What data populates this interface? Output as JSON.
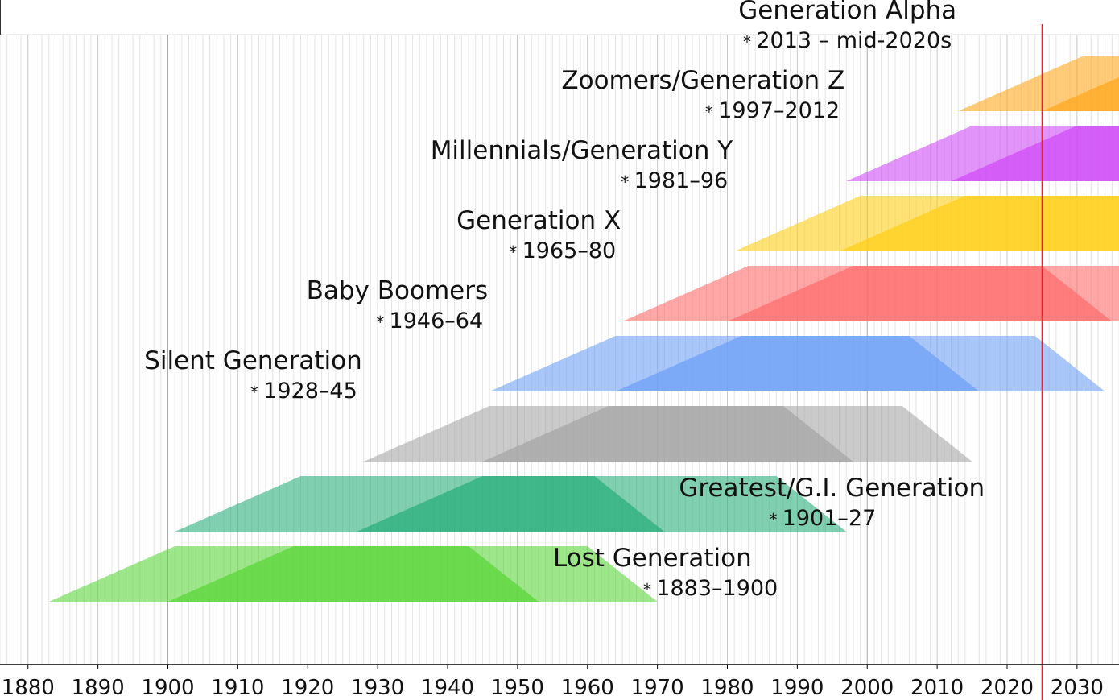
{
  "chart_data": {
    "type": "area",
    "title": "",
    "xlabel": "",
    "ylabel": "",
    "xlim": [
      1876,
      2036
    ],
    "current_year": 2025,
    "x_ticks": [
      1880,
      1890,
      1900,
      1910,
      1920,
      1930,
      1940,
      1950,
      1960,
      1970,
      1980,
      1990,
      2000,
      2010,
      2020,
      2030
    ],
    "x_tick_labels": [
      "1880",
      "1890",
      "1900",
      "1910",
      "1920",
      "1930",
      "1940",
      "1950",
      "1960",
      "1970",
      "1980",
      "1990",
      "2000",
      "2010",
      "2020",
      "2030"
    ],
    "grid": true,
    "series": [
      {
        "name": "Lost Generation",
        "years_label": "1883–1900",
        "birth_start": 1883,
        "birth_end": 1900,
        "adult_start": 1901,
        "adult_end": 1918,
        "elder_start": 1943,
        "elder_end": 1960,
        "death_start": 1953,
        "death_end": 1970,
        "color": "#5bd63a",
        "label_year": 1883,
        "label_side": "right"
      },
      {
        "name": "Greatest/G.I. Generation",
        "years_label": "1901–27",
        "birth_start": 1901,
        "birth_end": 1927,
        "adult_start": 1919,
        "adult_end": 1945,
        "elder_start": 1961,
        "elder_end": 1987,
        "death_start": 1971,
        "death_end": 1997,
        "color": "#2baf7b",
        "label_year": 1901,
        "label_side": "right"
      },
      {
        "name": "Silent Generation",
        "years_label": "1928–45",
        "birth_start": 1928,
        "birth_end": 1945,
        "adult_start": 1946,
        "adult_end": 1963,
        "elder_start": 1988,
        "elder_end": 2005,
        "death_start": 1998,
        "death_end": 2015,
        "color": "#a6a6a6",
        "label_year": 1928,
        "label_side": "left"
      },
      {
        "name": "Baby Boomers",
        "years_label": "1946–64",
        "birth_start": 1946,
        "birth_end": 1964,
        "adult_start": 1964,
        "adult_end": 1982,
        "elder_start": 2006,
        "elder_end": 2024,
        "death_start": 2016,
        "death_end": 2034,
        "color": "#6fa0f5",
        "label_year": 1946,
        "label_side": "left"
      },
      {
        "name": "Generation X",
        "years_label": "1965–80",
        "birth_start": 1965,
        "birth_end": 1980,
        "adult_start": 1983,
        "adult_end": 1998,
        "elder_start": 2025,
        "elder_end": 2040,
        "death_start": 2035,
        "death_end": 2050,
        "color": "#ff6d6d",
        "label_year": 1965,
        "label_side": "left"
      },
      {
        "name": "Millennials/Generation Y",
        "years_label": "1981–96",
        "birth_start": 1981,
        "birth_end": 1996,
        "adult_start": 1999,
        "adult_end": 2014,
        "elder_start": 2041,
        "elder_end": 2056,
        "death_start": 2051,
        "death_end": 2066,
        "color": "#ffcf1a",
        "label_year": 1981,
        "label_side": "left"
      },
      {
        "name": "Zoomers/Generation Z",
        "years_label": "1997–2012",
        "birth_start": 1997,
        "birth_end": 2012,
        "adult_start": 2015,
        "adult_end": 2030,
        "elder_start": 2057,
        "elder_end": 2072,
        "death_start": 2067,
        "death_end": 2082,
        "color": "#cf4cf6",
        "label_year": 1997,
        "label_side": "left"
      },
      {
        "name": "Generation Alpha",
        "years_label": "2013 – mid-2020s",
        "birth_start": 2013,
        "birth_end": 2025,
        "adult_start": 2031,
        "adult_end": 2043,
        "elder_start": 2073,
        "elder_end": 2085,
        "death_start": 2083,
        "death_end": 2095,
        "color": "#ffa81f",
        "label_year": 2013,
        "label_side": "left"
      }
    ]
  }
}
